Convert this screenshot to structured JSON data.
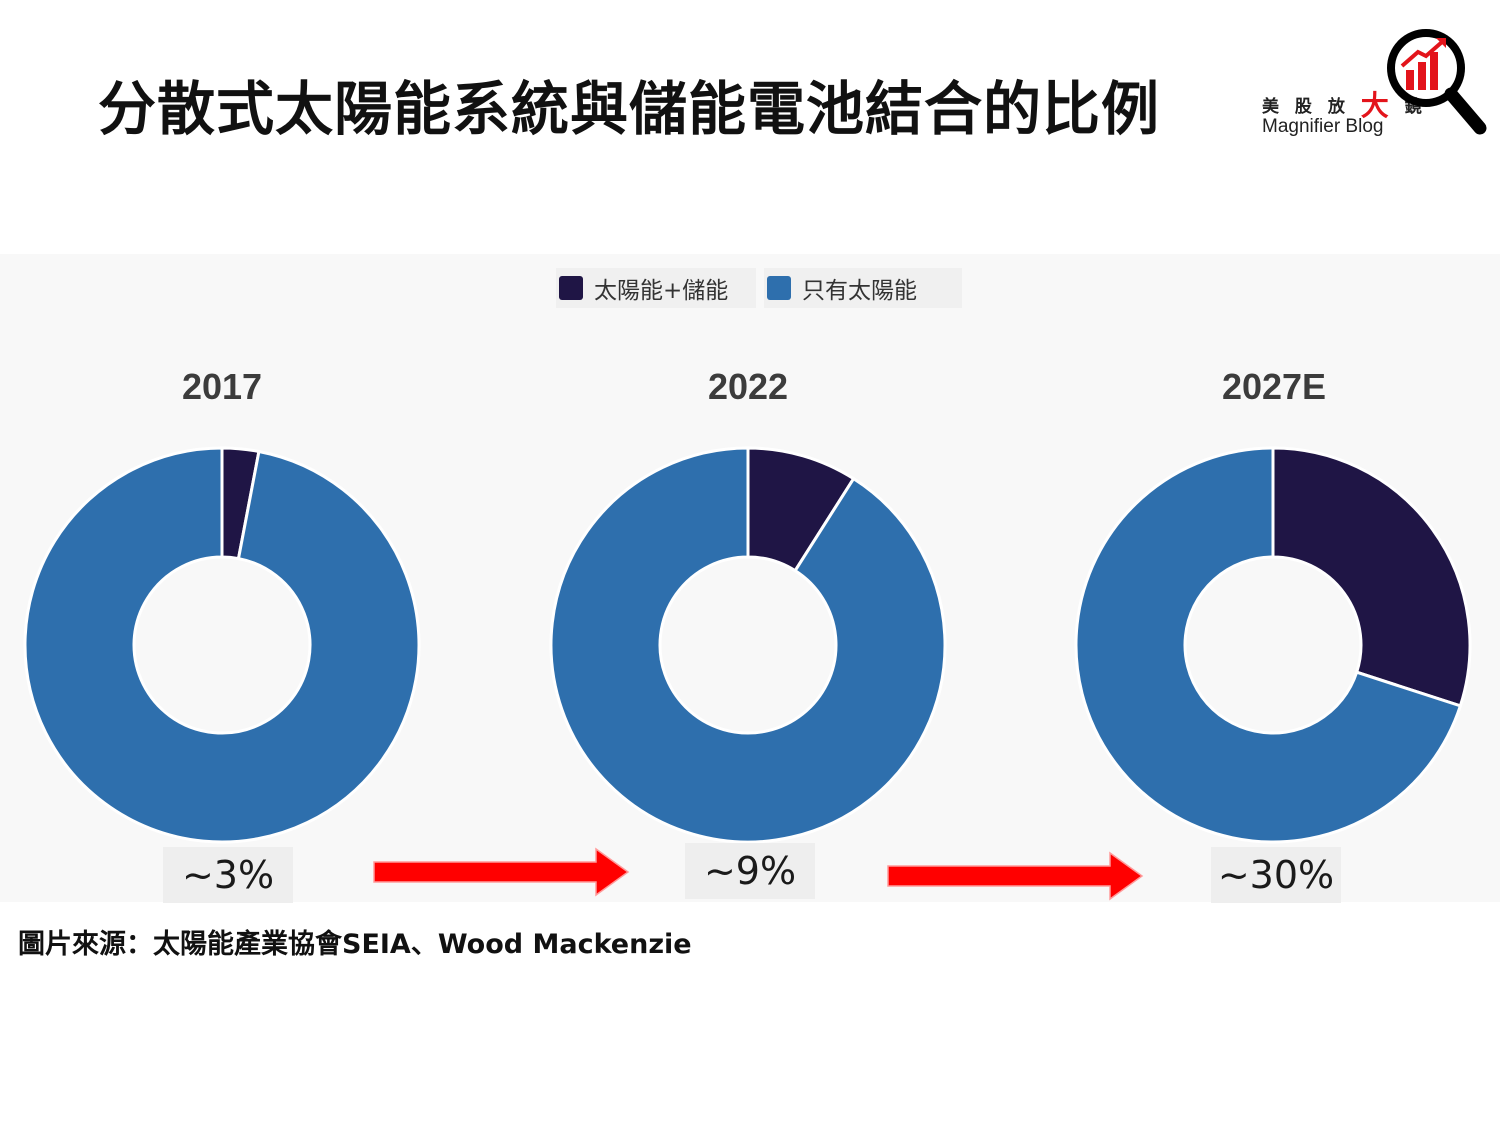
{
  "title": "分散式太陽能系統與儲能電池結合的比例",
  "brand": {
    "cn_prefix": "美 股 放",
    "cn_big": "大",
    "cn_suffix": "鏡",
    "en": "Magnifier Blog",
    "icon": "magnifier-chart-icon"
  },
  "colors": {
    "solar_plus_storage": "#1f1545",
    "solar_only": "#2e6fad",
    "arrow": "#ff0000"
  },
  "chart_data": {
    "type": "pie",
    "style": "donut",
    "legend": {
      "placement": "top-center",
      "entries": [
        "太陽能+儲能",
        "只有太陽能"
      ]
    },
    "categories": [
      "太陽能+儲能",
      "只有太陽能"
    ],
    "charts": [
      {
        "label": "2017",
        "values": [
          3,
          97
        ],
        "annotation": "~3%"
      },
      {
        "label": "2022",
        "values": [
          9,
          91
        ],
        "annotation": "~9%"
      },
      {
        "label": "2027E",
        "values": [
          30,
          70
        ],
        "annotation": "~30%"
      }
    ]
  },
  "source": "圖片來源：太陽能產業協會SEIA、Wood Mackenzie"
}
